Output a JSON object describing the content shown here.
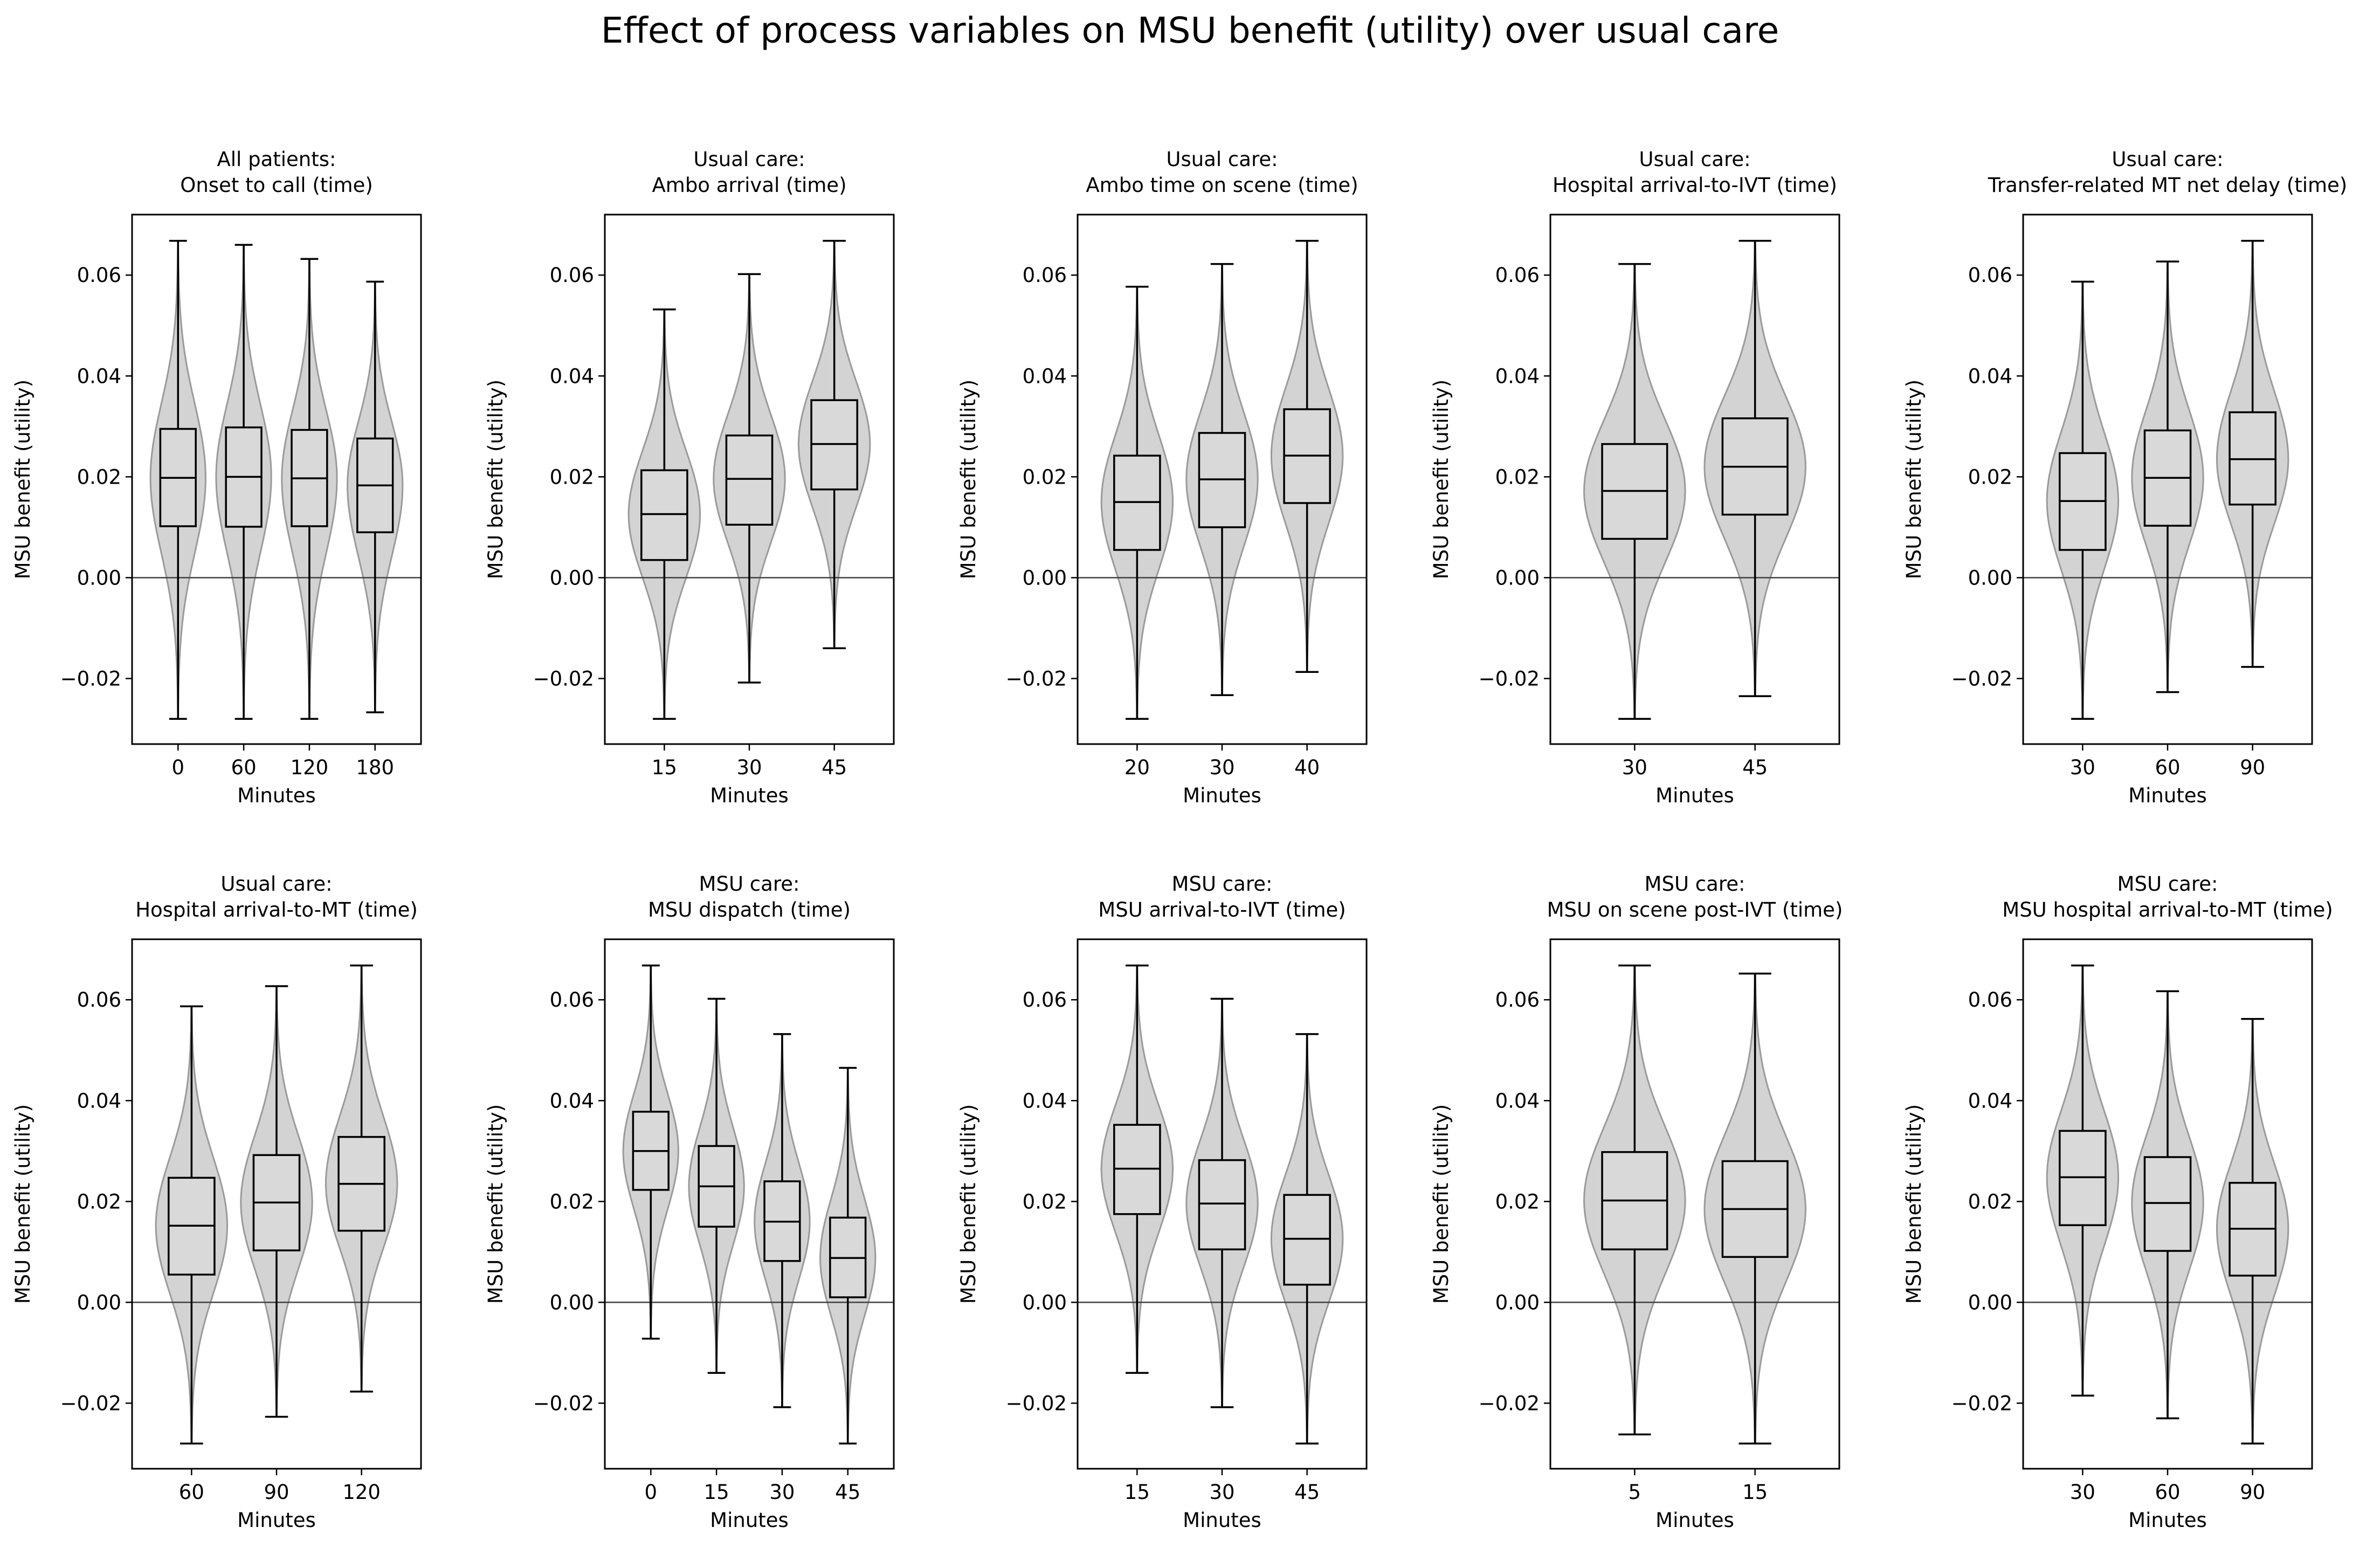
{
  "figure": {
    "title": "Effect of process variables on MSU benefit (utility) over usual care"
  },
  "colors": {
    "violin_fill": "#d3d3d3",
    "violin_edge": "#9a9a9a",
    "box_fill": "#d9d9d9",
    "line": "#000000",
    "zero_line": "#404040"
  },
  "chart_data": [
    {
      "type": "box-violin",
      "title": "All patients:\nOnset to call (time)",
      "xlabel": "Minutes",
      "ylabel": "MSU benefit (utility)",
      "ylim": [
        -0.033,
        0.072
      ],
      "yticks": [
        -0.02,
        0.0,
        0.02,
        0.04,
        0.06
      ],
      "zero_line": true,
      "categories": [
        "0",
        "60",
        "120",
        "180"
      ],
      "boxes": [
        {
          "whislo": -0.028,
          "q1": 0.0102,
          "med": 0.0198,
          "q3": 0.0295,
          "whishi": 0.0668
        },
        {
          "whislo": -0.028,
          "q1": 0.0101,
          "med": 0.02,
          "q3": 0.0298,
          "whishi": 0.066
        },
        {
          "whislo": -0.028,
          "q1": 0.0102,
          "med": 0.0197,
          "q3": 0.0293,
          "whishi": 0.0632
        },
        {
          "whislo": -0.0267,
          "q1": 0.009,
          "med": 0.0183,
          "q3": 0.0276,
          "whishi": 0.0587
        }
      ]
    },
    {
      "type": "box-violin",
      "title": "Usual care:\nAmbo arrival (time)",
      "xlabel": "Minutes",
      "ylabel": "MSU benefit (utility)",
      "ylim": [
        -0.033,
        0.072
      ],
      "yticks": [
        -0.02,
        0.0,
        0.02,
        0.04,
        0.06
      ],
      "zero_line": true,
      "categories": [
        "15",
        "30",
        "45"
      ],
      "boxes": [
        {
          "whislo": -0.028,
          "q1": 0.0035,
          "med": 0.0126,
          "q3": 0.0213,
          "whishi": 0.0532
        },
        {
          "whislo": -0.0208,
          "q1": 0.0105,
          "med": 0.0196,
          "q3": 0.0282,
          "whishi": 0.0602
        },
        {
          "whislo": -0.014,
          "q1": 0.0175,
          "med": 0.0265,
          "q3": 0.0352,
          "whishi": 0.0668
        }
      ]
    },
    {
      "type": "box-violin",
      "title": "Usual care:\nAmbo time on scene (time)",
      "xlabel": "Minutes",
      "ylabel": "MSU benefit (utility)",
      "ylim": [
        -0.033,
        0.072
      ],
      "yticks": [
        -0.02,
        0.0,
        0.02,
        0.04,
        0.06
      ],
      "zero_line": true,
      "categories": [
        "20",
        "30",
        "40"
      ],
      "boxes": [
        {
          "whislo": -0.028,
          "q1": 0.0055,
          "med": 0.015,
          "q3": 0.0242,
          "whishi": 0.0577
        },
        {
          "whislo": -0.0233,
          "q1": 0.01,
          "med": 0.0195,
          "q3": 0.0287,
          "whishi": 0.0622
        },
        {
          "whislo": -0.0187,
          "q1": 0.0148,
          "med": 0.0242,
          "q3": 0.0334,
          "whishi": 0.0668
        }
      ]
    },
    {
      "type": "box-violin",
      "title": "Usual care:\nHospital arrival-to-IVT (time)",
      "xlabel": "Minutes",
      "ylabel": "MSU benefit (utility)",
      "ylim": [
        -0.033,
        0.072
      ],
      "yticks": [
        -0.02,
        0.0,
        0.02,
        0.04,
        0.06
      ],
      "zero_line": true,
      "categories": [
        "30",
        "45"
      ],
      "boxes": [
        {
          "whislo": -0.028,
          "q1": 0.0077,
          "med": 0.0172,
          "q3": 0.0265,
          "whishi": 0.0622
        },
        {
          "whislo": -0.0235,
          "q1": 0.0125,
          "med": 0.022,
          "q3": 0.0316,
          "whishi": 0.0668
        }
      ]
    },
    {
      "type": "box-violin",
      "title": "Usual care:\nTransfer-related MT net delay (time)",
      "xlabel": "Minutes",
      "ylabel": "MSU benefit (utility)",
      "ylim": [
        -0.033,
        0.072
      ],
      "yticks": [
        -0.02,
        0.0,
        0.02,
        0.04,
        0.06
      ],
      "zero_line": true,
      "categories": [
        "30",
        "60",
        "90"
      ],
      "boxes": [
        {
          "whislo": -0.028,
          "q1": 0.0055,
          "med": 0.0152,
          "q3": 0.0247,
          "whishi": 0.0587
        },
        {
          "whislo": -0.0227,
          "q1": 0.0103,
          "med": 0.0198,
          "q3": 0.0292,
          "whishi": 0.0627
        },
        {
          "whislo": -0.0177,
          "q1": 0.0145,
          "med": 0.0235,
          "q3": 0.0328,
          "whishi": 0.0668
        }
      ]
    },
    {
      "type": "box-violin",
      "title": "Usual care:\nHospital arrival-to-MT (time)",
      "xlabel": "Minutes",
      "ylabel": "MSU benefit (utility)",
      "ylim": [
        -0.033,
        0.072
      ],
      "yticks": [
        -0.02,
        0.0,
        0.02,
        0.04,
        0.06
      ],
      "zero_line": true,
      "categories": [
        "60",
        "90",
        "120"
      ],
      "boxes": [
        {
          "whislo": -0.028,
          "q1": 0.0055,
          "med": 0.0152,
          "q3": 0.0247,
          "whishi": 0.0587
        },
        {
          "whislo": -0.0227,
          "q1": 0.0103,
          "med": 0.0198,
          "q3": 0.0292,
          "whishi": 0.0627
        },
        {
          "whislo": -0.0177,
          "q1": 0.0142,
          "med": 0.0235,
          "q3": 0.0328,
          "whishi": 0.0668
        }
      ]
    },
    {
      "type": "box-violin",
      "title": "MSU care:\nMSU dispatch (time)",
      "xlabel": "Minutes",
      "ylabel": "MSU benefit (utility)",
      "ylim": [
        -0.033,
        0.072
      ],
      "yticks": [
        -0.02,
        0.0,
        0.02,
        0.04,
        0.06
      ],
      "zero_line": true,
      "categories": [
        "0",
        "15",
        "30",
        "45"
      ],
      "boxes": [
        {
          "whislo": -0.0072,
          "q1": 0.0223,
          "med": 0.03,
          "q3": 0.0378,
          "whishi": 0.0668
        },
        {
          "whislo": -0.014,
          "q1": 0.015,
          "med": 0.023,
          "q3": 0.031,
          "whishi": 0.0602
        },
        {
          "whislo": -0.0208,
          "q1": 0.0082,
          "med": 0.016,
          "q3": 0.024,
          "whishi": 0.0532
        },
        {
          "whislo": -0.028,
          "q1": 0.001,
          "med": 0.0088,
          "q3": 0.0168,
          "whishi": 0.0465
        }
      ]
    },
    {
      "type": "box-violin",
      "title": "MSU care:\nMSU arrival-to-IVT (time)",
      "xlabel": "Minutes",
      "ylabel": "MSU benefit (utility)",
      "ylim": [
        -0.033,
        0.072
      ],
      "yticks": [
        -0.02,
        0.0,
        0.02,
        0.04,
        0.06
      ],
      "zero_line": true,
      "categories": [
        "15",
        "30",
        "45"
      ],
      "boxes": [
        {
          "whislo": -0.014,
          "q1": 0.0175,
          "med": 0.0265,
          "q3": 0.0352,
          "whishi": 0.0668
        },
        {
          "whislo": -0.0208,
          "q1": 0.0105,
          "med": 0.0196,
          "q3": 0.0282,
          "whishi": 0.0602
        },
        {
          "whislo": -0.028,
          "q1": 0.0035,
          "med": 0.0126,
          "q3": 0.0213,
          "whishi": 0.0532
        }
      ]
    },
    {
      "type": "box-violin",
      "title": "MSU care:\nMSU on scene post-IVT (time)",
      "xlabel": "Minutes",
      "ylabel": "MSU benefit (utility)",
      "ylim": [
        -0.033,
        0.072
      ],
      "yticks": [
        -0.02,
        0.0,
        0.02,
        0.04,
        0.06
      ],
      "zero_line": true,
      "categories": [
        "5",
        "15"
      ],
      "boxes": [
        {
          "whislo": -0.0262,
          "q1": 0.0105,
          "med": 0.0202,
          "q3": 0.0298,
          "whishi": 0.0668
        },
        {
          "whislo": -0.028,
          "q1": 0.009,
          "med": 0.0185,
          "q3": 0.028,
          "whishi": 0.0652
        }
      ]
    },
    {
      "type": "box-violin",
      "title": "MSU care:\nMSU hospital arrival-to-MT (time)",
      "xlabel": "Minutes",
      "ylabel": "MSU benefit (utility)",
      "ylim": [
        -0.033,
        0.072
      ],
      "yticks": [
        -0.02,
        0.0,
        0.02,
        0.04,
        0.06
      ],
      "zero_line": true,
      "categories": [
        "30",
        "60",
        "90"
      ],
      "boxes": [
        {
          "whislo": -0.0185,
          "q1": 0.0153,
          "med": 0.0248,
          "q3": 0.034,
          "whishi": 0.0668
        },
        {
          "whislo": -0.023,
          "q1": 0.0102,
          "med": 0.0197,
          "q3": 0.0288,
          "whishi": 0.0617
        },
        {
          "whislo": -0.028,
          "q1": 0.0053,
          "med": 0.0146,
          "q3": 0.0237,
          "whishi": 0.0562
        }
      ]
    }
  ]
}
